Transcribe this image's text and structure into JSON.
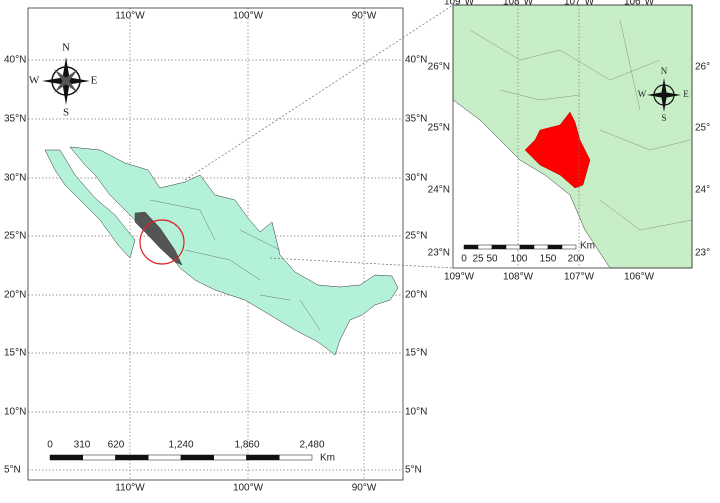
{
  "main_map": {
    "lon_labels": [
      "110°W",
      "100°W",
      "90°W"
    ],
    "lat_labels": [
      "40°N",
      "35°N",
      "30°N",
      "25°N",
      "20°N",
      "15°N",
      "10°N",
      "5°N"
    ],
    "compass": {
      "n": "N",
      "e": "E",
      "s": "S",
      "w": "W"
    },
    "scale_labels": [
      "0",
      "310",
      "620",
      "1,240",
      "1,860",
      "2,480"
    ],
    "scale_unit": "Km"
  },
  "inset_map": {
    "lon_labels": [
      "109°W",
      "108°W",
      "107°W",
      "106°W"
    ],
    "lat_labels_left": [
      "26°N",
      "25°N",
      "24°N",
      "23°N"
    ],
    "lat_labels_right": [
      "26°",
      "25°",
      "24°",
      "23°"
    ],
    "compass": {
      "n": "N",
      "e": "E",
      "s": "S",
      "w": "W"
    },
    "scale_labels": [
      "0",
      "25",
      "50",
      "100",
      "150",
      "200"
    ],
    "scale_unit": "Km"
  }
}
